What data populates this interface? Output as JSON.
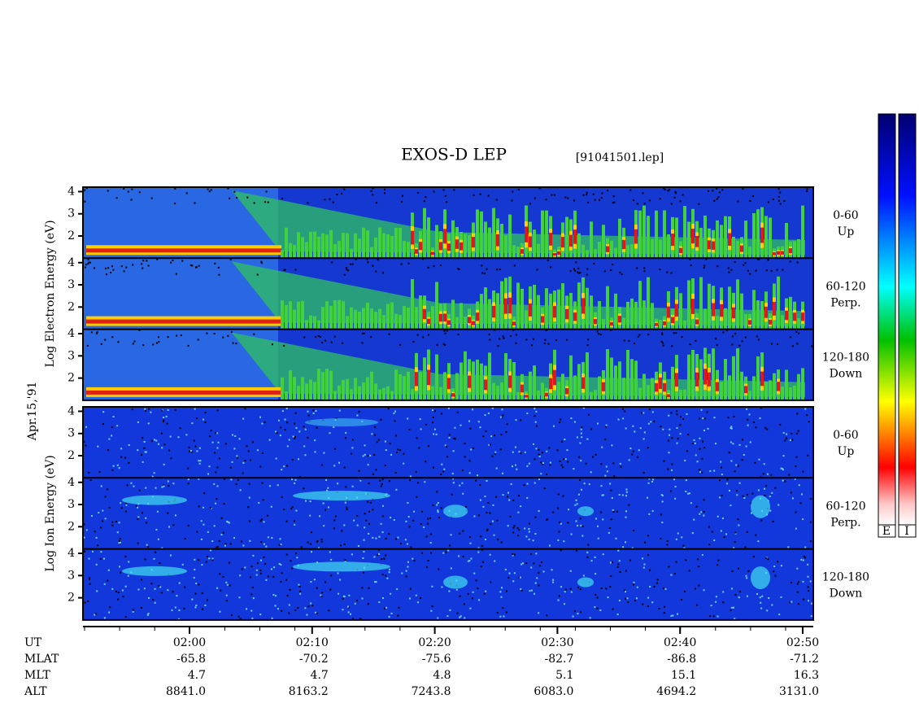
{
  "title": "EXOS-D LEP",
  "file": "[91041501.lep]",
  "date": "Apr.15,'91",
  "panels": [
    {
      "label": "Log Electron Energy (eV)",
      "ylim": [
        1,
        4.2
      ],
      "yticks": [
        2,
        3,
        4
      ],
      "channels": [
        {
          "range": "0-60",
          "direction": "Up"
        },
        {
          "range": "60-120",
          "direction": "Perp."
        },
        {
          "range": "120-180",
          "direction": "Down"
        }
      ]
    },
    {
      "label": "Log Ion Energy (eV)",
      "ylim": [
        1,
        4.2
      ],
      "yticks": [
        2,
        3,
        4
      ],
      "channels": [
        {
          "range": "0-60",
          "direction": "Up"
        },
        {
          "range": "60-120",
          "direction": "Perp."
        },
        {
          "range": "120-180",
          "direction": "Down"
        }
      ]
    }
  ],
  "time_axis": {
    "rows": [
      {
        "name": "UT",
        "values": [
          "02:00",
          "02:10",
          "02:20",
          "02:30",
          "02:40",
          "02:50"
        ]
      },
      {
        "name": "MLAT",
        "values": [
          "-65.8",
          "-70.2",
          "-75.6",
          "-82.7",
          "-86.8",
          "-71.2"
        ]
      },
      {
        "name": "MLT",
        "values": [
          "4.7",
          "4.7",
          "4.8",
          "5.1",
          "15.1",
          "16.3"
        ]
      },
      {
        "name": "ALT",
        "values": [
          "8841.0",
          "8163.2",
          "7243.8",
          "6083.0",
          "4694.2",
          "3131.0"
        ]
      }
    ]
  },
  "colorbars": [
    "E",
    "I"
  ]
}
